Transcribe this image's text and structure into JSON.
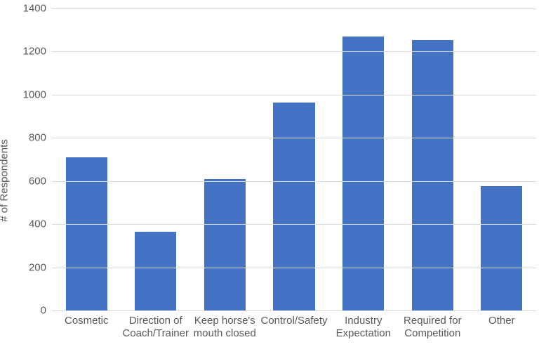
{
  "chart": {
    "type": "bar",
    "y_axis_label": "# of Respondents",
    "ylim": [
      0,
      1400
    ],
    "ytick_step": 200,
    "y_ticks": [
      0,
      200,
      400,
      600,
      800,
      1000,
      1200,
      1400
    ],
    "categories": [
      "Cosmetic",
      "Direction of Coach/Trainer",
      "Keep  horse's mouth closed",
      "Control/Safety",
      "Industry Expectation",
      "Required for Competition",
      "Other"
    ],
    "values": [
      710,
      365,
      610,
      965,
      1270,
      1255,
      575
    ],
    "bar_color": "#4472c4",
    "bar_width": 0.6,
    "background_color": "#ffffff",
    "grid_color": "#d9d9d9",
    "axis_text_color": "#595959",
    "label_fontsize": 15,
    "tick_fontsize": 15
  }
}
